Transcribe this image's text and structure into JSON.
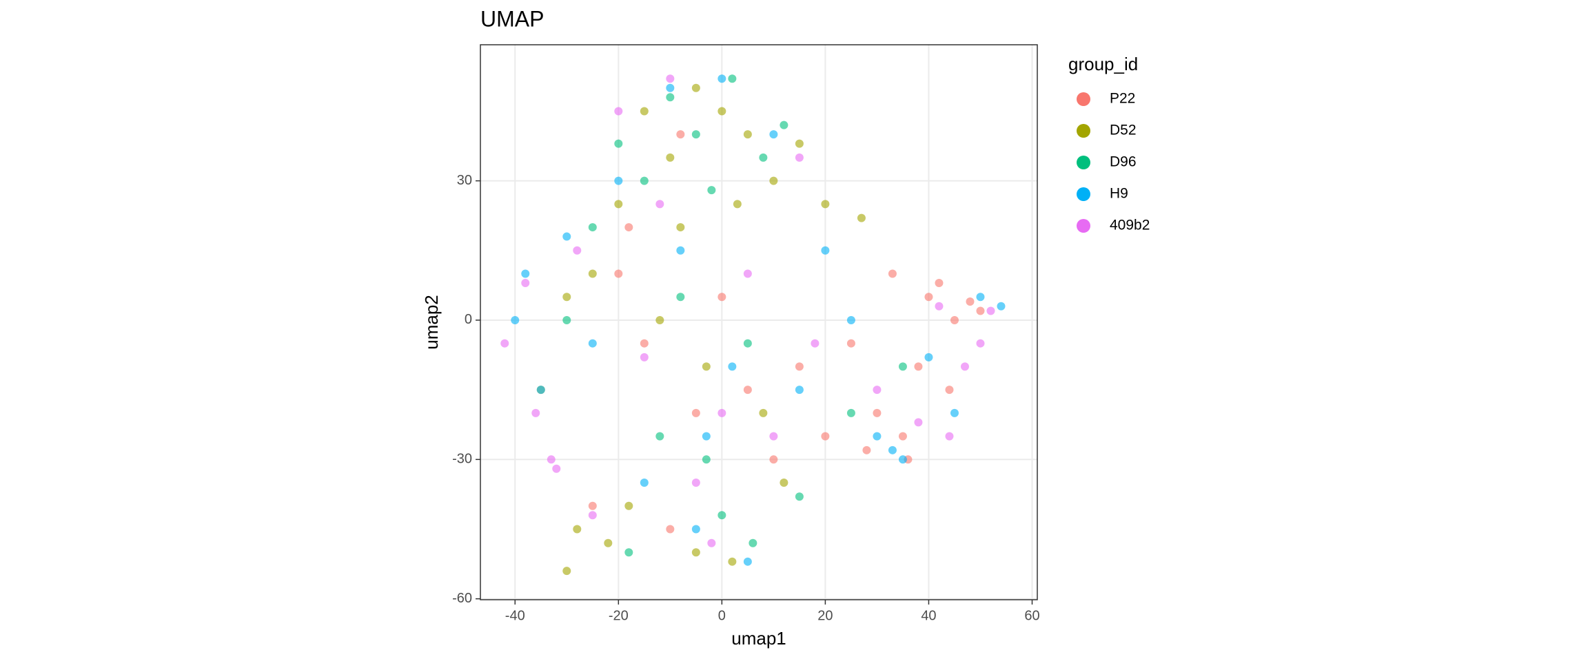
{
  "chart_data": {
    "type": "scatter",
    "title": "UMAP",
    "x_label": "umap1",
    "y_label": "umap2",
    "legend_title": "group_id",
    "legend_position": "right",
    "grid": true,
    "xlim": [
      -46.7,
      61
    ],
    "ylim": [
      -60.2,
      59.3
    ],
    "xticks": [
      -40,
      -20,
      0,
      20,
      40,
      60
    ],
    "yticks": [
      -60,
      -30,
      0,
      30
    ],
    "series": [
      {
        "name": "P22",
        "color": "#F8766D",
        "x": [
          40,
          45,
          35,
          30,
          42,
          50,
          38,
          25,
          33,
          48,
          -15,
          -20,
          -5,
          5,
          10,
          -25,
          -10,
          0,
          15,
          28,
          36,
          44,
          -8,
          -18,
          20
        ],
        "values": [
          5,
          0,
          -25,
          -20,
          8,
          2,
          -10,
          -5,
          10,
          4,
          -5,
          10,
          -20,
          -15,
          -30,
          -40,
          -45,
          5,
          -10,
          -28,
          -30,
          -15,
          40,
          20,
          -25
        ]
      },
      {
        "name": "D52",
        "color": "#A3A500",
        "x": [
          -5,
          0,
          5,
          -10,
          -15,
          10,
          15,
          -20,
          -8,
          3,
          20,
          27,
          -25,
          -30,
          -12,
          -3,
          8,
          -18,
          -28,
          -5,
          2,
          -22,
          12,
          -35,
          -30
        ],
        "values": [
          50,
          45,
          40,
          35,
          45,
          30,
          38,
          25,
          20,
          25,
          25,
          22,
          10,
          5,
          0,
          -10,
          -20,
          -40,
          -45,
          -50,
          -52,
          -48,
          -35,
          -15,
          -54
        ]
      },
      {
        "name": "D96",
        "color": "#00BF7D",
        "x": [
          -10,
          -5,
          2,
          8,
          -15,
          -20,
          12,
          -2,
          -25,
          -8,
          5,
          -12,
          0,
          15,
          -30,
          -18,
          6,
          -3,
          25,
          35
        ],
        "values": [
          48,
          40,
          52,
          35,
          30,
          38,
          42,
          28,
          20,
          5,
          -5,
          -25,
          -42,
          -38,
          0,
          -50,
          -48,
          -30,
          -20,
          -10
        ]
      },
      {
        "name": "H9",
        "color": "#00B0F6",
        "x": [
          -40,
          -35,
          -38,
          -30,
          -10,
          0,
          10,
          20,
          30,
          40,
          50,
          54,
          -5,
          -15,
          5,
          15,
          35,
          45,
          -25,
          -20,
          -8,
          2,
          -3,
          25,
          33
        ],
        "values": [
          0,
          -15,
          10,
          18,
          50,
          52,
          40,
          15,
          -25,
          -8,
          5,
          3,
          -45,
          -35,
          -52,
          -15,
          -30,
          -20,
          -5,
          30,
          15,
          -10,
          -25,
          0,
          -28
        ]
      },
      {
        "name": "409b2",
        "color": "#E76BF3",
        "x": [
          -42,
          -38,
          -36,
          -33,
          -32,
          -28,
          50,
          52,
          47,
          42,
          -20,
          -10,
          0,
          10,
          -5,
          15,
          30,
          38,
          -25,
          -15,
          5,
          -12,
          44,
          18,
          -2
        ],
        "values": [
          -5,
          8,
          -20,
          -30,
          -32,
          15,
          -5,
          2,
          -10,
          3,
          45,
          52,
          -20,
          -25,
          -35,
          35,
          -15,
          -22,
          -42,
          -8,
          10,
          25,
          -25,
          -5,
          -48
        ]
      }
    ]
  }
}
